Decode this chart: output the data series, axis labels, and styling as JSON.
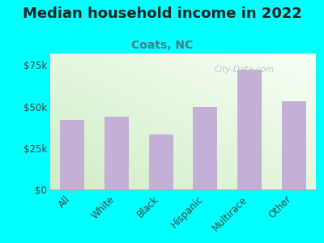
{
  "title": "Median household income in 2022",
  "subtitle": "Coats, NC",
  "categories": [
    "All",
    "White",
    "Black",
    "Hispanic",
    "Multirace",
    "Other"
  ],
  "values": [
    42000,
    44000,
    33000,
    50000,
    72000,
    53000
  ],
  "bar_color": "#c4afd6",
  "background_outer": "#00FFFF",
  "yticks": [
    0,
    25000,
    50000,
    75000
  ],
  "ytick_labels": [
    "$0",
    "$25k",
    "$50k",
    "$75k"
  ],
  "ylim": [
    0,
    82000
  ],
  "title_fontsize": 13,
  "subtitle_fontsize": 10,
  "tick_fontsize": 8.5,
  "subtitle_color": "#4a7a8a",
  "title_color": "#222222",
  "axis_color": "#aaaaaa",
  "watermark": "City-Data.com",
  "watermark_color": "#b0c0c8"
}
